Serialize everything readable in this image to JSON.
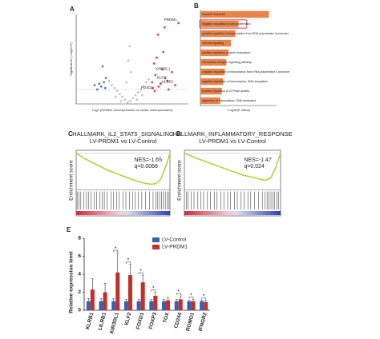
{
  "chart_data": [
    {
      "type": "scatter",
      "panel": "A",
      "xlabel": "Log2 (PRDM1 overexpression vs vector overexpression)",
      "ylabel": "Significance (-Log10 P)",
      "xlim": [
        -8,
        9
      ],
      "ylim": [
        0,
        6.2
      ],
      "series": [
        {
          "color": "#b8b8b8",
          "x": [
            -3,
            -2.6,
            -2.2,
            -1.8,
            -1.4,
            -1,
            -0.6,
            -0.2,
            0.2,
            0.6,
            1,
            1.4,
            1.8,
            2.2,
            2.6,
            3,
            -2,
            -1.2,
            1.2,
            2,
            -0.4,
            0.3,
            -0.1,
            0.1
          ],
          "y": [
            1.6,
            1.3,
            1.1,
            0.9,
            0.7,
            0.5,
            0.3,
            0.1,
            0.2,
            0.4,
            0.6,
            0.8,
            1.0,
            1.2,
            1.5,
            1.7,
            0.5,
            0.2,
            0.3,
            0.6,
            1.5,
            2.2,
            3.0,
            4.0
          ]
        },
        {
          "color": "#3b5bc4",
          "x": [
            -4.5,
            -4.2,
            -3.8,
            -4.8,
            -3.5,
            -4,
            -5.2,
            -3.6
          ],
          "y": [
            1.4,
            1.2,
            1.5,
            1.0,
            1.8,
            2.6,
            1.3,
            1.1
          ]
        },
        {
          "color": "#d0282e",
          "x": [
            3.5,
            4,
            4.5,
            5,
            3.8,
            4.2,
            5.5,
            6,
            3.6,
            4.8,
            5.2,
            6.5,
            7,
            4.4,
            3.9,
            5.8,
            7.5,
            5.4
          ],
          "y": [
            1.5,
            2.0,
            1.2,
            2.4,
            2.8,
            3.2,
            1.8,
            1.0,
            1.1,
            1.4,
            3.6,
            2.2,
            1.3,
            4.8,
            0.9,
            1.6,
            5.6,
            5.3
          ]
        }
      ],
      "labels": [
        {
          "text": "PRDM1",
          "x": 7.5,
          "y": 5.6
        },
        {
          "text": "KIR3DL1",
          "x": 6.5,
          "y": 2.2
        },
        {
          "text": "KLF2",
          "x": 5.8,
          "y": 1.6
        },
        {
          "text": "LILRB1",
          "x": 7,
          "y": 1.3
        },
        {
          "text": "FOXD1",
          "x": 3.9,
          "y": 0.9
        }
      ]
    },
    {
      "type": "barh",
      "panel": "B",
      "xlabel": "-Log10(P-Value)",
      "xlim": [
        0,
        20
      ],
      "color": "#e8834a",
      "highlight": 1,
      "categories": [
        "immune response",
        "negative regulation of cell proliferation",
        "positive regulation of transcription from RNA polymerase II promoter",
        "cell-cell signaling",
        "positive regulation of gene expression",
        "cell surface receptor signaling pathway",
        "negative regulation of transcription from RNA polymerase II promoter",
        "negative regulation of transcription, DNA-templated",
        "positive regulation of GTPase activity",
        "regulation of transcription, DNA-templated"
      ],
      "values": [
        18,
        10,
        9.2,
        8,
        7.4,
        6.8,
        6.4,
        6,
        5.6,
        5.2
      ]
    },
    {
      "type": "gsea",
      "panel": "C",
      "title": "HALLMARK_IL2_STAT5_SIGNALING",
      "subtitle": "LV-PRDM1 vs LV-Control",
      "nes": "NES=-1.65",
      "q": "q=0.0066",
      "ylabel": "Enrichment score",
      "color": "#a8d83a",
      "xlim": [
        0,
        100
      ],
      "ylim": [
        -0.6,
        0.05
      ],
      "x": [
        0,
        5,
        10,
        15,
        20,
        25,
        30,
        35,
        40,
        45,
        50,
        55,
        60,
        65,
        70,
        75,
        80,
        85,
        90,
        95,
        100
      ],
      "values": [
        0,
        -0.05,
        -0.1,
        -0.14,
        -0.18,
        -0.22,
        -0.26,
        -0.3,
        -0.33,
        -0.36,
        -0.39,
        -0.42,
        -0.45,
        -0.48,
        -0.5,
        -0.52,
        -0.53,
        -0.52,
        -0.45,
        -0.25,
        0
      ],
      "hits": [
        1,
        3,
        5,
        8,
        11,
        13,
        16,
        19,
        22,
        25,
        28,
        30,
        33,
        37,
        40,
        43,
        46,
        50,
        53,
        57,
        60,
        63,
        66,
        70,
        74,
        78,
        82,
        85,
        87,
        89,
        91,
        93,
        95,
        97,
        99
      ]
    },
    {
      "type": "gsea",
      "panel": "D",
      "title": "HALLMARK_INFLAMMATORY_RESPONSE",
      "subtitle": "LV-PRDM1 vs LV-Control",
      "nes": "NES=-1.47",
      "q": "q=0.024",
      "ylabel": "Enrichment score",
      "color": "#a8d83a",
      "xlim": [
        0,
        100
      ],
      "ylim": [
        -0.6,
        0.05
      ],
      "x": [
        0,
        5,
        10,
        15,
        20,
        25,
        30,
        35,
        40,
        45,
        50,
        55,
        60,
        65,
        70,
        75,
        80,
        85,
        90,
        95,
        100
      ],
      "values": [
        0,
        -0.03,
        -0.07,
        -0.1,
        -0.13,
        -0.16,
        -0.19,
        -0.22,
        -0.25,
        -0.28,
        -0.31,
        -0.34,
        -0.37,
        -0.39,
        -0.41,
        -0.43,
        -0.45,
        -0.46,
        -0.42,
        -0.24,
        0
      ],
      "hits": [
        2,
        4,
        7,
        10,
        14,
        17,
        20,
        24,
        27,
        31,
        34,
        38,
        41,
        45,
        48,
        52,
        55,
        59,
        62,
        66,
        69,
        73,
        77,
        81,
        84,
        86,
        88,
        90,
        92,
        94,
        96,
        98
      ]
    },
    {
      "type": "bar",
      "panel": "E",
      "ylabel": "Relative expression level",
      "ylim": [
        0,
        8
      ],
      "yticks": [
        0,
        2,
        4,
        6,
        8
      ],
      "categories": [
        "KLRB1",
        "LILRB1",
        "KIR3DL1",
        "KLF2",
        "FOXD1",
        "FOXP3",
        "TOX",
        "CD244",
        "ROMO1",
        "IFNGR2"
      ],
      "series": [
        {
          "name": "LV-Control",
          "color": "#3a5fb0",
          "values": [
            1,
            1,
            1,
            1,
            1,
            1,
            1,
            1,
            1,
            1
          ],
          "errors": [
            0.3,
            0.3,
            0.3,
            0.2,
            0.2,
            0.2,
            0.2,
            0.2,
            0.1,
            0.1
          ]
        },
        {
          "name": "LV-PRDM1",
          "color": "#c0302b",
          "values": [
            2.3,
            2.0,
            4.2,
            3.9,
            3.1,
            1.6,
            1.1,
            1.2,
            1.0,
            0.9
          ],
          "errors": [
            1.2,
            1.0,
            2.2,
            1.2,
            0.8,
            0.4,
            0.3,
            0.4,
            0.2,
            0.2
          ]
        }
      ],
      "stars": [
        {
          "index": 2,
          "text": "*"
        },
        {
          "index": 3,
          "text": "*"
        },
        {
          "index": 4,
          "text": "*"
        },
        {
          "index": 5,
          "text": "*"
        },
        {
          "index": 7,
          "text": "*"
        },
        {
          "index": 8,
          "text": "*"
        },
        {
          "index": 9,
          "text": "*"
        }
      ]
    }
  ]
}
